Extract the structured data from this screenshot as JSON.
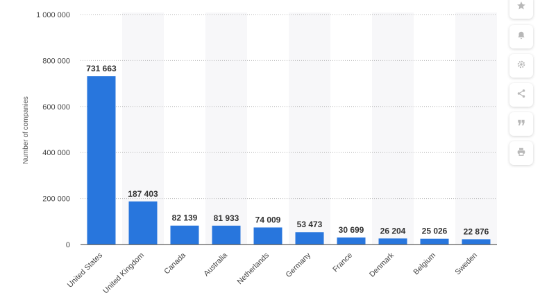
{
  "chart_data": {
    "type": "bar",
    "ylabel": "Number of companies",
    "ylim": [
      0,
      1000000
    ],
    "yticks": [
      0,
      200000,
      400000,
      600000,
      800000,
      1000000
    ],
    "ytick_labels": [
      "0",
      "200 000",
      "400 000",
      "600 000",
      "800 000",
      "1 000 000"
    ],
    "grid": true,
    "categories": [
      "United States",
      "United Kingdom",
      "Canada",
      "Australia",
      "Netherlands",
      "Germany",
      "France",
      "Denmark",
      "Belgium",
      "Sweden"
    ],
    "values": [
      731663,
      187403,
      82139,
      81933,
      74009,
      53473,
      30699,
      26204,
      25026,
      22876
    ],
    "value_labels": [
      "731 663",
      "187 403",
      "82 139",
      "81 933",
      "74 009",
      "53 473",
      "30 699",
      "26 204",
      "25 026",
      "22 876"
    ],
    "bar_color": "#2876dd"
  },
  "toolbar": [
    {
      "name": "star-icon"
    },
    {
      "name": "bell-icon"
    },
    {
      "name": "gear-icon"
    },
    {
      "name": "share-icon"
    },
    {
      "name": "quote-icon"
    },
    {
      "name": "print-icon"
    }
  ]
}
